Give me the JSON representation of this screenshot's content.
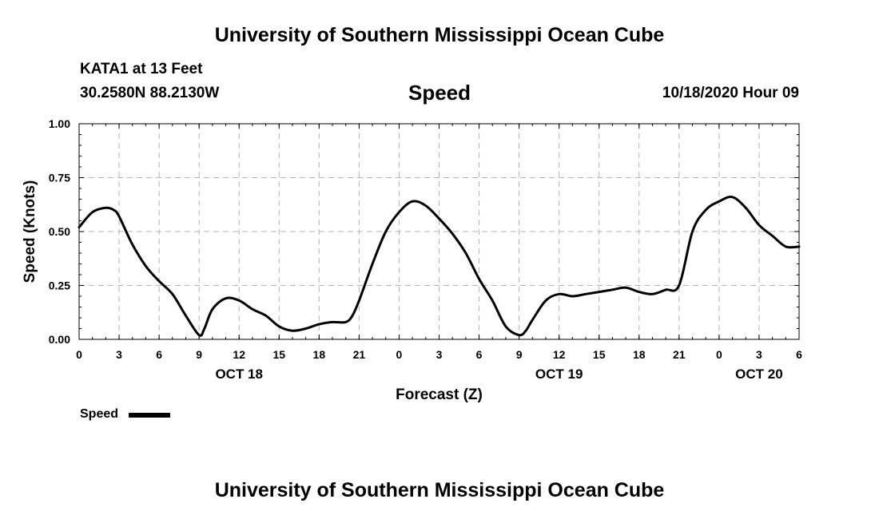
{
  "header": {
    "title": "University of Southern Mississippi Ocean Cube",
    "station": "KATA1 at 13 Feet",
    "coordinates": "30.2580N 88.2130W",
    "chart_title": "Speed",
    "timestamp": "10/18/2020 Hour 09"
  },
  "footer": {
    "title": "University of Southern Mississippi Ocean Cube"
  },
  "legend": {
    "label": "Speed",
    "color": "#000000"
  },
  "chart_data": {
    "type": "line",
    "title": "Speed",
    "xlabel": "Forecast (Z)",
    "ylabel": "Speed (Knots)",
    "ylim": [
      0,
      1
    ],
    "xlim": [
      0,
      54
    ],
    "y_ticks": [
      "0.00",
      "0.25",
      "0.50",
      "0.75",
      "1.00"
    ],
    "x_tick_labels": [
      "0",
      "3",
      "6",
      "9",
      "12",
      "15",
      "18",
      "21",
      "0",
      "3",
      "6",
      "9",
      "12",
      "15",
      "18",
      "21",
      "0",
      "3",
      "6"
    ],
    "date_labels": [
      {
        "label": "OCT 18",
        "hour": 12
      },
      {
        "label": "OCT 19",
        "hour": 36
      },
      {
        "label": "OCT 20",
        "hour": 51
      }
    ],
    "grid": true,
    "series": [
      {
        "name": "Speed",
        "color": "#000000",
        "x": [
          0,
          1,
          2,
          2.6,
          3,
          4,
          5,
          6,
          7,
          8,
          9,
          9.4,
          10,
          11,
          12,
          13,
          14,
          15,
          16,
          17,
          18,
          19,
          20,
          20.5,
          21,
          22,
          23,
          24,
          25,
          26,
          27,
          28,
          29,
          30,
          31,
          32,
          33,
          33.5,
          34,
          35,
          36,
          37,
          38,
          39,
          40,
          41,
          42,
          43,
          44,
          45,
          46,
          47,
          48,
          49,
          50,
          51,
          52,
          53,
          54
        ],
        "y": [
          0.52,
          0.59,
          0.61,
          0.6,
          0.57,
          0.44,
          0.34,
          0.27,
          0.21,
          0.11,
          0.02,
          0.05,
          0.14,
          0.19,
          0.18,
          0.14,
          0.11,
          0.06,
          0.04,
          0.05,
          0.07,
          0.08,
          0.08,
          0.11,
          0.18,
          0.35,
          0.5,
          0.59,
          0.64,
          0.62,
          0.56,
          0.49,
          0.4,
          0.28,
          0.18,
          0.06,
          0.02,
          0.04,
          0.09,
          0.18,
          0.21,
          0.2,
          0.21,
          0.22,
          0.23,
          0.24,
          0.22,
          0.21,
          0.23,
          0.25,
          0.5,
          0.6,
          0.64,
          0.66,
          0.61,
          0.53,
          0.48,
          0.43,
          0.43
        ]
      }
    ]
  }
}
